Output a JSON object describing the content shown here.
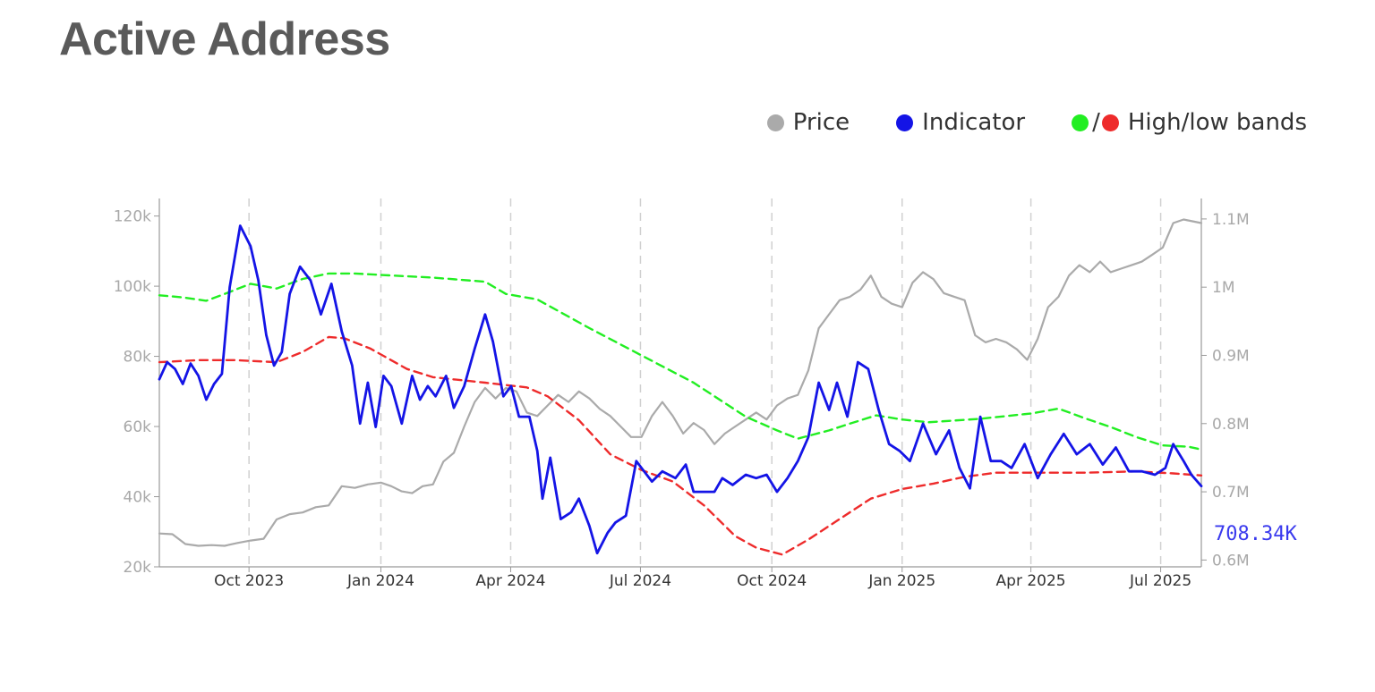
{
  "page": {
    "title": "Active Address"
  },
  "legend": {
    "price": "Price",
    "indicator": "Indicator",
    "separator": "/",
    "bands": "High/low bands"
  },
  "colors": {
    "title": "#5a5a5a",
    "price": "#aaaaaa",
    "indicator": "#1414e6",
    "high_band": "#22ee22",
    "low_band": "#ee2b2b",
    "grid": "#d0d0d0",
    "axis": "#999999",
    "last_label": "#3a3aee"
  },
  "chart_data": {
    "type": "line",
    "title": "Active Address",
    "x_ticks": [
      {
        "label": "Oct 2023",
        "t": 2023.747
      },
      {
        "label": "Jan 2024",
        "t": 2024.0
      },
      {
        "label": "Apr 2024",
        "t": 2024.249
      },
      {
        "label": "Jul 2024",
        "t": 2024.498
      },
      {
        "label": "Oct 2024",
        "t": 2024.75
      },
      {
        "label": "Jan 2025",
        "t": 2025.0
      },
      {
        "label": "Apr 2025",
        "t": 2025.247
      },
      {
        "label": "Jul 2025",
        "t": 2025.496
      }
    ],
    "x_range": [
      2023.575,
      2025.574
    ],
    "y_left": {
      "ticks": [
        "20k",
        "40k",
        "60k",
        "80k",
        "100k",
        "120k"
      ],
      "tick_values": [
        20000,
        40000,
        60000,
        80000,
        100000,
        120000
      ],
      "range": [
        20000,
        125000
      ]
    },
    "y_right": {
      "ticks": [
        "0.6M",
        "0.7M",
        "0.8M",
        "0.9M",
        "1M",
        "1.1M"
      ],
      "tick_values": [
        600000,
        700000,
        800000,
        900000,
        1000000,
        1100000
      ],
      "range": [
        590000,
        1130000
      ]
    },
    "grid": "vertical dashed at x ticks",
    "legend_position": "top-right",
    "last_value_label": "708.34K",
    "series": [
      {
        "name": "Price",
        "axis": "left",
        "points": [
          [
            2023.575,
            29500
          ],
          [
            2023.6,
            29300
          ],
          [
            2023.625,
            26500
          ],
          [
            2023.65,
            26000
          ],
          [
            2023.675,
            26200
          ],
          [
            2023.7,
            26000
          ],
          [
            2023.725,
            26800
          ],
          [
            2023.75,
            27500
          ],
          [
            2023.775,
            28000
          ],
          [
            2023.8,
            33500
          ],
          [
            2023.825,
            35000
          ],
          [
            2023.85,
            35500
          ],
          [
            2023.875,
            37000
          ],
          [
            2023.9,
            37500
          ],
          [
            2023.925,
            43000
          ],
          [
            2023.95,
            42500
          ],
          [
            2023.975,
            43500
          ],
          [
            2024.0,
            44000
          ],
          [
            2024.02,
            43000
          ],
          [
            2024.04,
            41500
          ],
          [
            2024.06,
            41000
          ],
          [
            2024.08,
            43000
          ],
          [
            2024.1,
            43500
          ],
          [
            2024.12,
            50000
          ],
          [
            2024.14,
            52500
          ],
          [
            2024.16,
            60000
          ],
          [
            2024.18,
            67000
          ],
          [
            2024.2,
            71000
          ],
          [
            2024.22,
            68000
          ],
          [
            2024.24,
            71000
          ],
          [
            2024.26,
            70000
          ],
          [
            2024.28,
            64000
          ],
          [
            2024.3,
            63000
          ],
          [
            2024.32,
            66000
          ],
          [
            2024.34,
            69000
          ],
          [
            2024.36,
            67000
          ],
          [
            2024.38,
            70000
          ],
          [
            2024.4,
            68000
          ],
          [
            2024.42,
            65000
          ],
          [
            2024.44,
            63000
          ],
          [
            2024.46,
            60000
          ],
          [
            2024.48,
            57000
          ],
          [
            2024.5,
            57000
          ],
          [
            2024.52,
            63000
          ],
          [
            2024.54,
            67000
          ],
          [
            2024.56,
            63000
          ],
          [
            2024.58,
            58000
          ],
          [
            2024.6,
            61000
          ],
          [
            2024.62,
            59000
          ],
          [
            2024.64,
            55000
          ],
          [
            2024.66,
            58000
          ],
          [
            2024.68,
            60000
          ],
          [
            2024.7,
            62000
          ],
          [
            2024.72,
            64000
          ],
          [
            2024.74,
            62000
          ],
          [
            2024.76,
            66000
          ],
          [
            2024.78,
            68000
          ],
          [
            2024.8,
            69000
          ],
          [
            2024.82,
            76000
          ],
          [
            2024.84,
            88000
          ],
          [
            2024.86,
            92000
          ],
          [
            2024.88,
            96000
          ],
          [
            2024.9,
            97000
          ],
          [
            2024.92,
            99000
          ],
          [
            2024.94,
            103000
          ],
          [
            2024.96,
            97000
          ],
          [
            2024.98,
            95000
          ],
          [
            2025.0,
            94000
          ],
          [
            2025.02,
            101000
          ],
          [
            2025.04,
            104000
          ],
          [
            2025.06,
            102000
          ],
          [
            2025.08,
            98000
          ],
          [
            2025.1,
            97000
          ],
          [
            2025.12,
            96000
          ],
          [
            2025.14,
            86000
          ],
          [
            2025.16,
            84000
          ],
          [
            2025.18,
            85000
          ],
          [
            2025.2,
            84000
          ],
          [
            2025.22,
            82000
          ],
          [
            2025.24,
            79000
          ],
          [
            2025.26,
            85000
          ],
          [
            2025.28,
            94000
          ],
          [
            2025.3,
            97000
          ],
          [
            2025.32,
            103000
          ],
          [
            2025.34,
            106000
          ],
          [
            2025.36,
            104000
          ],
          [
            2025.38,
            107000
          ],
          [
            2025.4,
            104000
          ],
          [
            2025.42,
            105000
          ],
          [
            2025.44,
            106000
          ],
          [
            2025.46,
            107000
          ],
          [
            2025.48,
            109000
          ],
          [
            2025.5,
            111000
          ],
          [
            2025.52,
            118000
          ],
          [
            2025.54,
            119000
          ],
          [
            2025.574,
            118000
          ]
        ]
      },
      {
        "name": "Indicator",
        "axis": "right",
        "points": [
          [
            2023.575,
            865000
          ],
          [
            2023.59,
            890000
          ],
          [
            2023.605,
            880000
          ],
          [
            2023.62,
            858000
          ],
          [
            2023.635,
            888000
          ],
          [
            2023.65,
            870000
          ],
          [
            2023.665,
            835000
          ],
          [
            2023.68,
            858000
          ],
          [
            2023.695,
            873000
          ],
          [
            2023.71,
            1000000
          ],
          [
            2023.73,
            1090000
          ],
          [
            2023.75,
            1060000
          ],
          [
            2023.765,
            1010000
          ],
          [
            2023.78,
            930000
          ],
          [
            2023.795,
            885000
          ],
          [
            2023.81,
            905000
          ],
          [
            2023.825,
            990000
          ],
          [
            2023.845,
            1030000
          ],
          [
            2023.865,
            1010000
          ],
          [
            2023.885,
            960000
          ],
          [
            2023.905,
            1005000
          ],
          [
            2023.925,
            935000
          ],
          [
            2023.945,
            885000
          ],
          [
            2023.96,
            800000
          ],
          [
            2023.975,
            860000
          ],
          [
            2023.99,
            795000
          ],
          [
            2024.005,
            870000
          ],
          [
            2024.02,
            855000
          ],
          [
            2024.04,
            800000
          ],
          [
            2024.06,
            870000
          ],
          [
            2024.075,
            835000
          ],
          [
            2024.09,
            855000
          ],
          [
            2024.105,
            840000
          ],
          [
            2024.125,
            870000
          ],
          [
            2024.14,
            823000
          ],
          [
            2024.16,
            855000
          ],
          [
            2024.18,
            910000
          ],
          [
            2024.2,
            960000
          ],
          [
            2024.215,
            920000
          ],
          [
            2024.235,
            840000
          ],
          [
            2024.25,
            855000
          ],
          [
            2024.265,
            810000
          ],
          [
            2024.285,
            810000
          ],
          [
            2024.3,
            760000
          ],
          [
            2024.31,
            690000
          ],
          [
            2024.325,
            750000
          ],
          [
            2024.345,
            660000
          ],
          [
            2024.365,
            670000
          ],
          [
            2024.38,
            690000
          ],
          [
            2024.4,
            650000
          ],
          [
            2024.415,
            610000
          ],
          [
            2024.435,
            640000
          ],
          [
            2024.45,
            655000
          ],
          [
            2024.47,
            665000
          ],
          [
            2024.49,
            745000
          ],
          [
            2024.505,
            730000
          ],
          [
            2024.52,
            715000
          ],
          [
            2024.54,
            730000
          ],
          [
            2024.565,
            720000
          ],
          [
            2024.585,
            740000
          ],
          [
            2024.6,
            700000
          ],
          [
            2024.62,
            700000
          ],
          [
            2024.64,
            700000
          ],
          [
            2024.655,
            720000
          ],
          [
            2024.675,
            710000
          ],
          [
            2024.7,
            725000
          ],
          [
            2024.72,
            720000
          ],
          [
            2024.74,
            725000
          ],
          [
            2024.76,
            700000
          ],
          [
            2024.78,
            720000
          ],
          [
            2024.8,
            745000
          ],
          [
            2024.82,
            780000
          ],
          [
            2024.84,
            860000
          ],
          [
            2024.86,
            820000
          ],
          [
            2024.875,
            860000
          ],
          [
            2024.895,
            810000
          ],
          [
            2024.915,
            890000
          ],
          [
            2024.935,
            880000
          ],
          [
            2024.955,
            820000
          ],
          [
            2024.975,
            770000
          ],
          [
            2024.995,
            760000
          ],
          [
            2025.015,
            745000
          ],
          [
            2025.04,
            800000
          ],
          [
            2025.065,
            755000
          ],
          [
            2025.09,
            790000
          ],
          [
            2025.11,
            735000
          ],
          [
            2025.13,
            705000
          ],
          [
            2025.15,
            810000
          ],
          [
            2025.17,
            745000
          ],
          [
            2025.19,
            745000
          ],
          [
            2025.21,
            735000
          ],
          [
            2025.235,
            770000
          ],
          [
            2025.26,
            720000
          ],
          [
            2025.285,
            755000
          ],
          [
            2025.31,
            785000
          ],
          [
            2025.335,
            755000
          ],
          [
            2025.36,
            770000
          ],
          [
            2025.385,
            740000
          ],
          [
            2025.41,
            765000
          ],
          [
            2025.435,
            730000
          ],
          [
            2025.46,
            730000
          ],
          [
            2025.485,
            725000
          ],
          [
            2025.505,
            735000
          ],
          [
            2025.52,
            770000
          ],
          [
            2025.54,
            745000
          ],
          [
            2025.555,
            725000
          ],
          [
            2025.574,
            708340
          ]
        ]
      },
      {
        "name": "High band",
        "axis": "right",
        "style": "dashed",
        "points": [
          [
            2023.575,
            988000
          ],
          [
            2023.62,
            985000
          ],
          [
            2023.665,
            980000
          ],
          [
            2023.7,
            990000
          ],
          [
            2023.75,
            1005000
          ],
          [
            2023.8,
            998000
          ],
          [
            2023.85,
            1012000
          ],
          [
            2023.9,
            1020000
          ],
          [
            2023.95,
            1020000
          ],
          [
            2024.0,
            1018000
          ],
          [
            2024.1,
            1014000
          ],
          [
            2024.2,
            1008000
          ],
          [
            2024.24,
            990000
          ],
          [
            2024.3,
            982000
          ],
          [
            2024.4,
            940000
          ],
          [
            2024.5,
            900000
          ],
          [
            2024.6,
            860000
          ],
          [
            2024.7,
            810000
          ],
          [
            2024.76,
            790000
          ],
          [
            2024.8,
            778000
          ],
          [
            2024.86,
            790000
          ],
          [
            2024.9,
            800000
          ],
          [
            2024.95,
            812000
          ],
          [
            2025.0,
            806000
          ],
          [
            2025.05,
            802000
          ],
          [
            2025.15,
            807000
          ],
          [
            2025.25,
            815000
          ],
          [
            2025.3,
            822000
          ],
          [
            2025.35,
            808000
          ],
          [
            2025.4,
            795000
          ],
          [
            2025.45,
            780000
          ],
          [
            2025.5,
            768000
          ],
          [
            2025.55,
            766000
          ],
          [
            2025.574,
            762000
          ]
        ]
      },
      {
        "name": "Low band",
        "axis": "right",
        "style": "dashed",
        "points": [
          [
            2023.575,
            890000
          ],
          [
            2023.65,
            893000
          ],
          [
            2023.72,
            893000
          ],
          [
            2023.8,
            890000
          ],
          [
            2023.85,
            905000
          ],
          [
            2023.9,
            927000
          ],
          [
            2023.93,
            925000
          ],
          [
            2023.98,
            910000
          ],
          [
            2024.05,
            880000
          ],
          [
            2024.1,
            868000
          ],
          [
            2024.2,
            860000
          ],
          [
            2024.28,
            853000
          ],
          [
            2024.32,
            840000
          ],
          [
            2024.38,
            805000
          ],
          [
            2024.44,
            755000
          ],
          [
            2024.5,
            732000
          ],
          [
            2024.56,
            715000
          ],
          [
            2024.62,
            680000
          ],
          [
            2024.68,
            635000
          ],
          [
            2024.72,
            618000
          ],
          [
            2024.77,
            608000
          ],
          [
            2024.82,
            630000
          ],
          [
            2024.88,
            660000
          ],
          [
            2024.94,
            690000
          ],
          [
            2025.0,
            704000
          ],
          [
            2025.06,
            712000
          ],
          [
            2025.12,
            722000
          ],
          [
            2025.18,
            728000
          ],
          [
            2025.25,
            728000
          ],
          [
            2025.35,
            728000
          ],
          [
            2025.45,
            730000
          ],
          [
            2025.52,
            727000
          ],
          [
            2025.574,
            724000
          ]
        ]
      }
    ]
  }
}
